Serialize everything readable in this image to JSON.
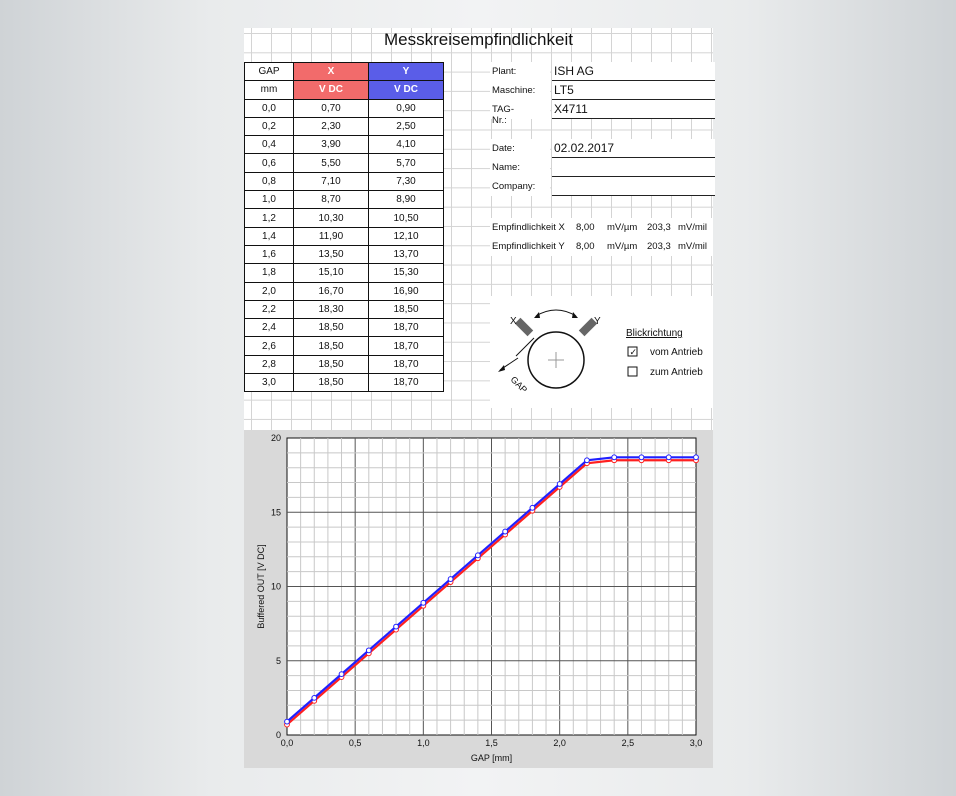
{
  "title": "Messkreisempfindlichkeit",
  "table": {
    "header1": [
      "GAP",
      "X",
      "Y"
    ],
    "header2": [
      "mm",
      "V DC",
      "V DC"
    ],
    "rows": [
      [
        "0,0",
        "0,70",
        "0,90"
      ],
      [
        "0,2",
        "2,30",
        "2,50"
      ],
      [
        "0,4",
        "3,90",
        "4,10"
      ],
      [
        "0,6",
        "5,50",
        "5,70"
      ],
      [
        "0,8",
        "7,10",
        "7,30"
      ],
      [
        "1,0",
        "8,70",
        "8,90"
      ],
      [
        "1,2",
        "10,30",
        "10,50"
      ],
      [
        "1,4",
        "11,90",
        "12,10"
      ],
      [
        "1,6",
        "13,50",
        "13,70"
      ],
      [
        "1,8",
        "15,10",
        "15,30"
      ],
      [
        "2,0",
        "16,70",
        "16,90"
      ],
      [
        "2,2",
        "18,30",
        "18,50"
      ],
      [
        "2,4",
        "18,50",
        "18,70"
      ],
      [
        "2,6",
        "18,50",
        "18,70"
      ],
      [
        "2,8",
        "18,50",
        "18,70"
      ],
      [
        "3,0",
        "18,50",
        "18,70"
      ]
    ]
  },
  "info": {
    "plant_label": "Plant:",
    "plant_value": "ISH AG",
    "machine_label": "Maschine:",
    "machine_value": "LT5",
    "tag_label": "TAG-Nr.:",
    "tag_value": "X4711",
    "date_label": "Date:",
    "date_value": "02.02.2017",
    "name_label": "Name:",
    "name_value": "",
    "company_label": "Company:",
    "company_value": ""
  },
  "sensitivity": {
    "x": {
      "label": "Empfindlichkeit X",
      "value1": "8,00",
      "unit1": "mV/µm",
      "value2": "203,3",
      "unit2": "mV/mil"
    },
    "y": {
      "label": "Empfindlichkeit Y",
      "value1": "8,00",
      "unit1": "mV/µm",
      "value2": "203,3",
      "unit2": "mV/mil"
    }
  },
  "sensor": {
    "x_label": "X",
    "y_label": "Y",
    "gap_label": "GAP",
    "direction_title": "Blickrichtung",
    "opt1": "vom Antrieb",
    "opt1_checked": true,
    "opt2": "zum Antrieb",
    "opt2_checked": false
  },
  "colors": {
    "x": "#f26b6b",
    "y": "#5a5de8",
    "x_line": "#ff2020",
    "y_line": "#2020ff"
  },
  "chart_data": {
    "type": "line",
    "xlabel": "GAP  [mm]",
    "ylabel": "Buffered OUT  [V DC]",
    "xlim": [
      0,
      3
    ],
    "ylim": [
      0,
      20
    ],
    "xticks": [
      "0,0",
      "0,5",
      "1,0",
      "1,5",
      "2,0",
      "2,5",
      "3,0"
    ],
    "yticks": [
      "0",
      "5",
      "10",
      "15",
      "20"
    ],
    "x": [
      0.0,
      0.2,
      0.4,
      0.6,
      0.8,
      1.0,
      1.2,
      1.4,
      1.6,
      1.8,
      2.0,
      2.2,
      2.4,
      2.6,
      2.8,
      3.0
    ],
    "series": [
      {
        "values": [
          0.7,
          2.3,
          3.9,
          5.5,
          7.1,
          8.7,
          10.3,
          11.9,
          13.5,
          15.1,
          16.7,
          18.3,
          18.5,
          18.5,
          18.5,
          18.5
        ]
      },
      {
        "values": [
          0.9,
          2.5,
          4.1,
          5.7,
          7.3,
          8.9,
          10.5,
          12.1,
          13.7,
          15.3,
          16.9,
          18.5,
          18.7,
          18.7,
          18.7,
          18.7
        ]
      }
    ],
    "grid": true
  }
}
